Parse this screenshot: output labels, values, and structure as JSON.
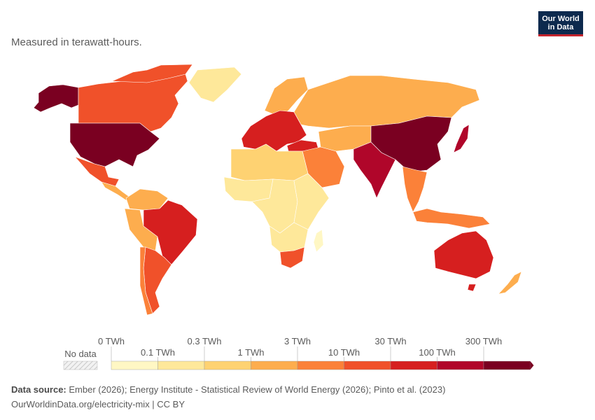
{
  "header": {
    "subtitle": "Measured in terawatt-hours.",
    "logo_line1": "Our World",
    "logo_line2": "in Data"
  },
  "legend": {
    "no_data_label": "No data",
    "ticks": [
      "0 TWh",
      "0.1 TWh",
      "0.3 TWh",
      "1 TWh",
      "3 TWh",
      "10 TWh",
      "30 TWh",
      "100 TWh",
      "300 TWh"
    ],
    "colors": [
      "#fff7c4",
      "#fee89a",
      "#fed272",
      "#fdad4e",
      "#fb8139",
      "#f0512a",
      "#d61f1f",
      "#b0062a",
      "#7a0021"
    ],
    "no_data_color": "#e8e8e8"
  },
  "footer": {
    "source_label": "Data source:",
    "source_text": "Ember (2026); Energy Institute - Statistical Review of World Energy (2026); Pinto et al. (2023)",
    "url_text": "OurWorldinData.org/electricity-mix | CC BY"
  },
  "map": {
    "border_color": "#ffffff",
    "regions": [
      {
        "name": "alaska",
        "bin": 8
      },
      {
        "name": "canada",
        "bin": 5
      },
      {
        "name": "greenland",
        "bin": 1
      },
      {
        "name": "usa",
        "bin": 8
      },
      {
        "name": "mexico",
        "bin": 5
      },
      {
        "name": "central-america",
        "bin": 3
      },
      {
        "name": "colombia-venezuela",
        "bin": 3
      },
      {
        "name": "brazil",
        "bin": 6
      },
      {
        "name": "peru-bolivia",
        "bin": 3
      },
      {
        "name": "argentina",
        "bin": 5
      },
      {
        "name": "chile",
        "bin": 4
      },
      {
        "name": "europe-west",
        "bin": 6
      },
      {
        "name": "scandinavia",
        "bin": 3
      },
      {
        "name": "russia",
        "bin": 3
      },
      {
        "name": "turkey",
        "bin": 6
      },
      {
        "name": "north-africa",
        "bin": 2
      },
      {
        "name": "west-africa",
        "bin": 1
      },
      {
        "name": "central-africa",
        "bin": 1
      },
      {
        "name": "east-africa",
        "bin": 1
      },
      {
        "name": "southern-africa",
        "bin": 1
      },
      {
        "name": "south-africa",
        "bin": 5
      },
      {
        "name": "middle-east",
        "bin": 4
      },
      {
        "name": "central-asia",
        "bin": 3
      },
      {
        "name": "india",
        "bin": 7
      },
      {
        "name": "china",
        "bin": 8
      },
      {
        "name": "japan",
        "bin": 7
      },
      {
        "name": "southeast-asia",
        "bin": 4
      },
      {
        "name": "indonesia",
        "bin": 4
      },
      {
        "name": "australia",
        "bin": 6
      },
      {
        "name": "new-zealand",
        "bin": 3
      },
      {
        "name": "madagascar",
        "bin": 0
      }
    ]
  }
}
